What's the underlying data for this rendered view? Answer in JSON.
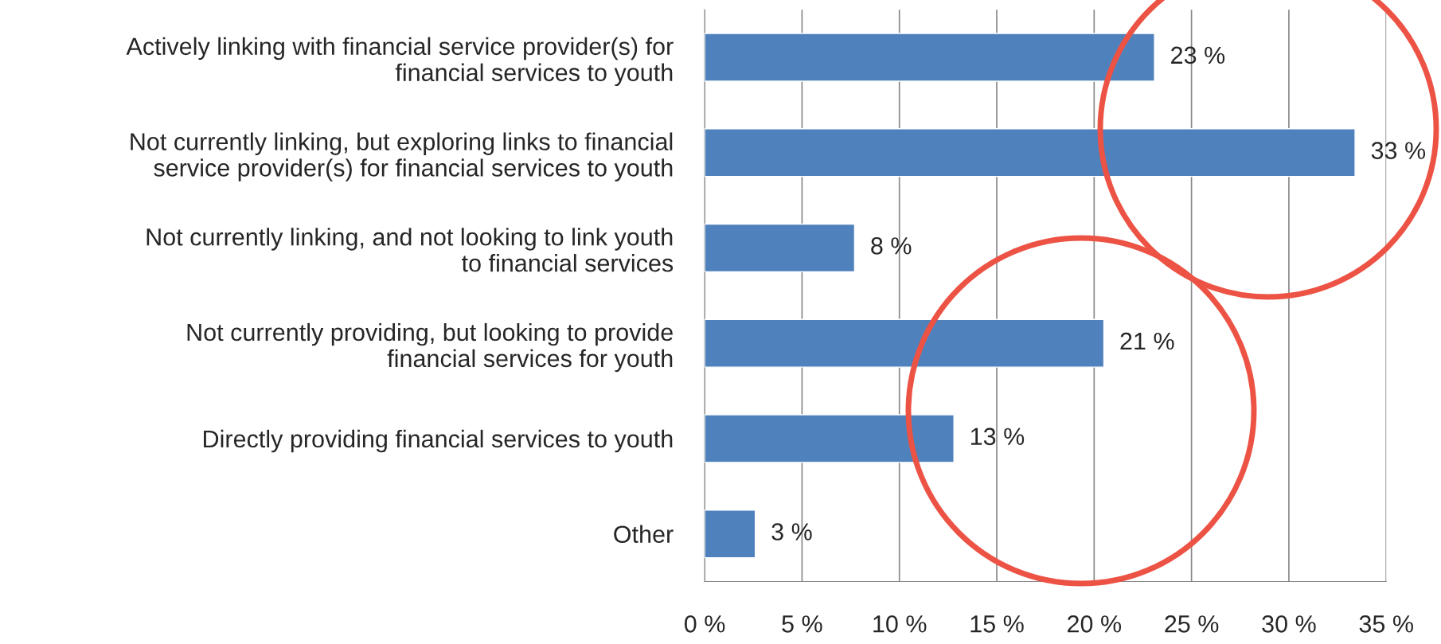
{
  "chart_data": {
    "type": "bar",
    "orientation": "horizontal",
    "categories": [
      "Actively linking with financial service provider(s) for\nfinancial services to youth",
      "Not currently linking, but exploring links to financial\nservice provider(s) for financial services to youth",
      "Not currently linking, and not looking to link youth\nto financial services",
      "Not currently providing, but looking to provide\nfinancial services for youth",
      "Directly providing financial services to youth",
      "Other"
    ],
    "values": [
      23.1,
      33.4,
      7.7,
      20.5,
      12.8,
      2.6
    ],
    "value_labels": [
      "23 %",
      "33 %",
      "8 %",
      "21 %",
      "13 %",
      "3 %"
    ],
    "color": "#4f81bd",
    "xlim": [
      0,
      35
    ],
    "xticks": [
      {
        "value": 0,
        "label": "0 %"
      },
      {
        "value": 5,
        "label": "5 %"
      },
      {
        "value": 10,
        "label": "10 %"
      },
      {
        "value": 15,
        "label": "15 %"
      },
      {
        "value": 20,
        "label": "20 %"
      },
      {
        "value": 25,
        "label": "25 %"
      },
      {
        "value": 30,
        "label": "30 %"
      },
      {
        "value": 35,
        "label": "35 %"
      }
    ],
    "grid": "x",
    "legend": false
  }
}
